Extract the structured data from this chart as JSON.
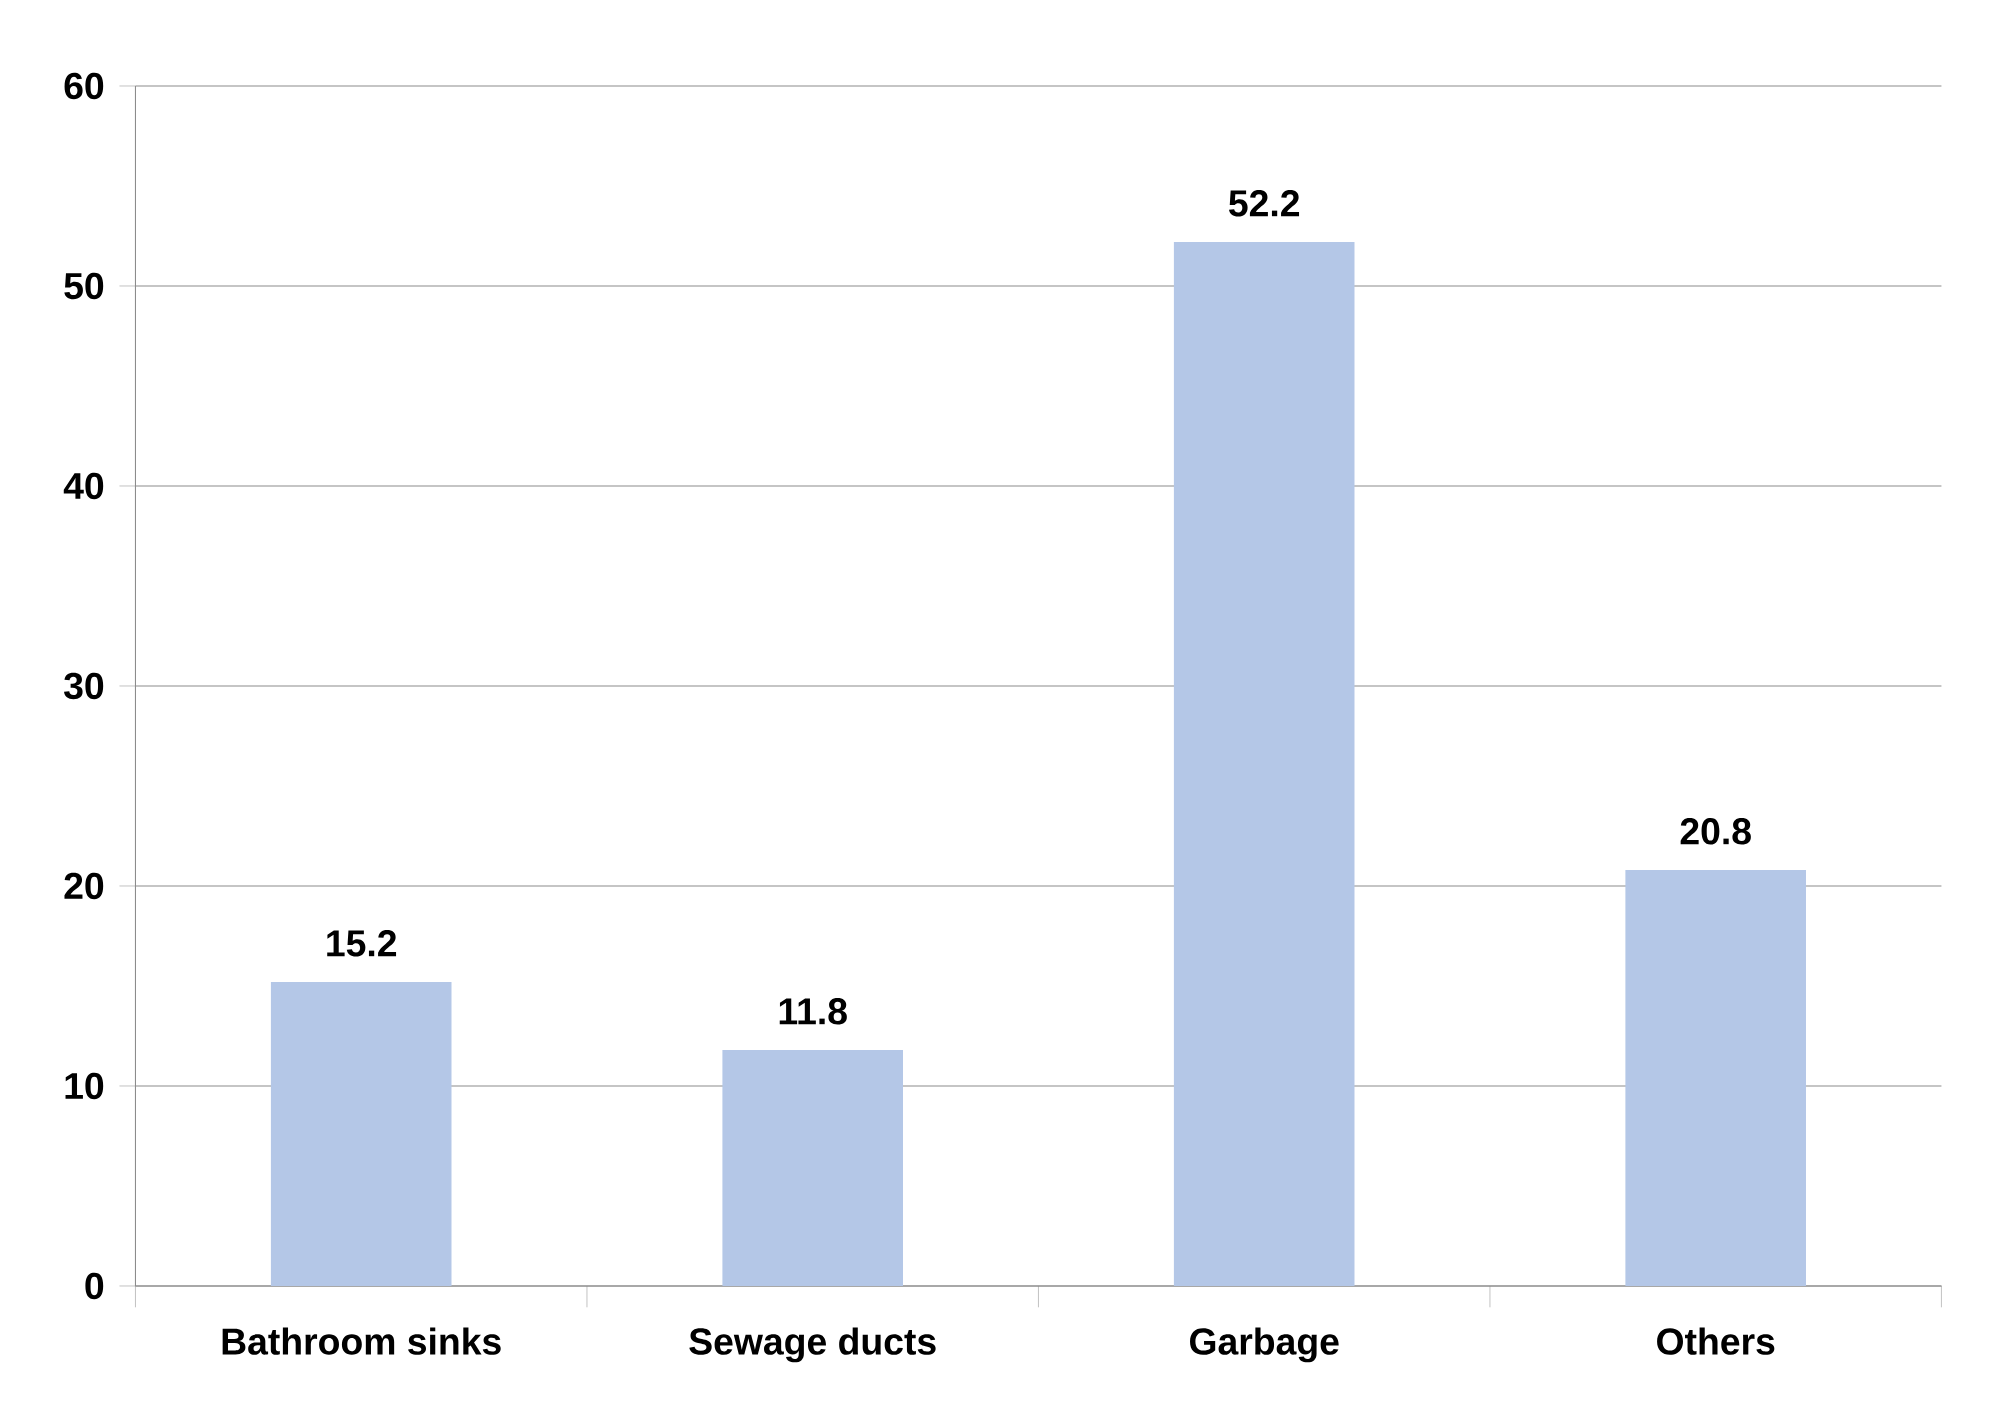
{
  "chart_data": {
    "type": "bar",
    "categories": [
      "Bathroom sinks",
      "Sewage ducts",
      "Garbage",
      "Others"
    ],
    "values": [
      15.2,
      11.8,
      52.2,
      20.8
    ],
    "color": "#b4c7e7",
    "ylim": [
      0,
      60
    ],
    "yticks": [
      0,
      10,
      20,
      30,
      40,
      50,
      60
    ],
    "grid": "y",
    "data_labels": true
  }
}
